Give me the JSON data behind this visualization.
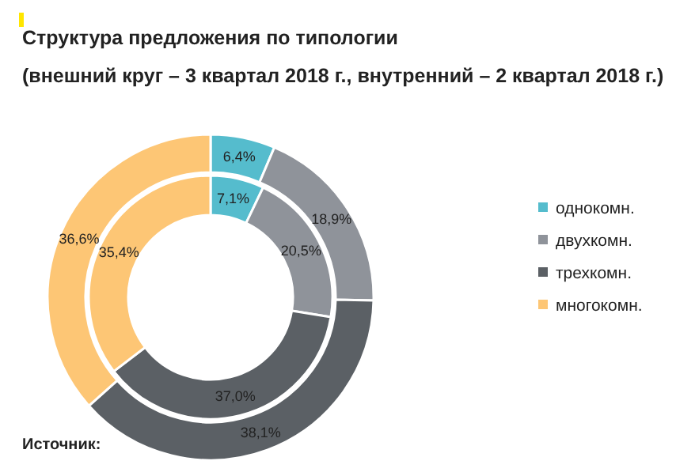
{
  "chart_data": {
    "type": "donut",
    "title": "Структура предложения по типологии",
    "subtitle": "(внешний круг – 3 квартал 2018 г., внутренний – 2 квартал 2018 г.)",
    "categories": [
      "однокомн.",
      "двухкомн.",
      "трехкомн.",
      "многокомн."
    ],
    "colors": [
      "#55bccd",
      "#8f939a",
      "#5b6065",
      "#fdc675"
    ],
    "legend": "right",
    "series": [
      {
        "values": [
          6.4,
          18.9,
          38.1,
          36.6
        ],
        "value_labels": [
          "6,4%",
          "18,9%",
          "38,1%",
          "36,6%"
        ]
      },
      {
        "values": [
          7.1,
          20.5,
          37.0,
          35.4
        ],
        "value_labels": [
          "7,1%",
          "20,5%",
          "37,0%",
          "35,4%"
        ]
      }
    ],
    "annotations": [
      "Источник:"
    ]
  }
}
